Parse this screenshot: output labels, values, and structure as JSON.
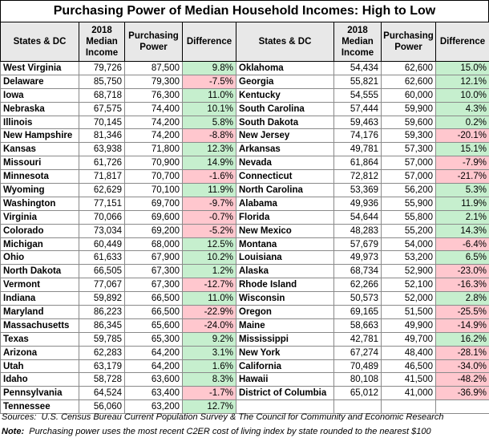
{
  "title": "Purchasing Power of Median Household Incomes: High to Low",
  "headers": {
    "state": "States & DC",
    "income_l1": "2018",
    "income_l2": "Median",
    "income_l3": "Income",
    "pp_l1": "Purchasing",
    "pp_l2": "Power",
    "diff": "Difference"
  },
  "left": [
    {
      "state": "West Virginia",
      "income": "79,726",
      "power": "87,500",
      "diff": "9.8%",
      "sign": "pos"
    },
    {
      "state": "Delaware",
      "income": "85,750",
      "power": "79,300",
      "diff": "-7.5%",
      "sign": "neg"
    },
    {
      "state": "Iowa",
      "income": "68,718",
      "power": "76,300",
      "diff": "11.0%",
      "sign": "pos"
    },
    {
      "state": "Nebraska",
      "income": "67,575",
      "power": "74,400",
      "diff": "10.1%",
      "sign": "pos"
    },
    {
      "state": "Illinois",
      "income": "70,145",
      "power": "74,200",
      "diff": "5.8%",
      "sign": "pos"
    },
    {
      "state": "New Hampshire",
      "income": "81,346",
      "power": "74,200",
      "diff": "-8.8%",
      "sign": "neg"
    },
    {
      "state": "Kansas",
      "income": "63,938",
      "power": "71,800",
      "diff": "12.3%",
      "sign": "pos"
    },
    {
      "state": "Missouri",
      "income": "61,726",
      "power": "70,900",
      "diff": "14.9%",
      "sign": "pos"
    },
    {
      "state": "Minnesota",
      "income": "71,817",
      "power": "70,700",
      "diff": "-1.6%",
      "sign": "neg"
    },
    {
      "state": "Wyoming",
      "income": "62,629",
      "power": "70,100",
      "diff": "11.9%",
      "sign": "pos"
    },
    {
      "state": "Washington",
      "income": "77,151",
      "power": "69,700",
      "diff": "-9.7%",
      "sign": "neg"
    },
    {
      "state": "Virginia",
      "income": "70,066",
      "power": "69,600",
      "diff": "-0.7%",
      "sign": "neg"
    },
    {
      "state": "Colorado",
      "income": "73,034",
      "power": "69,200",
      "diff": "-5.2%",
      "sign": "neg"
    },
    {
      "state": "Michigan",
      "income": "60,449",
      "power": "68,000",
      "diff": "12.5%",
      "sign": "pos"
    },
    {
      "state": "Ohio",
      "income": "61,633",
      "power": "67,900",
      "diff": "10.2%",
      "sign": "pos"
    },
    {
      "state": "North Dakota",
      "income": "66,505",
      "power": "67,300",
      "diff": "1.2%",
      "sign": "pos"
    },
    {
      "state": "Vermont",
      "income": "77,067",
      "power": "67,300",
      "diff": "-12.7%",
      "sign": "neg"
    },
    {
      "state": "Indiana",
      "income": "59,892",
      "power": "66,500",
      "diff": "11.0%",
      "sign": "pos"
    },
    {
      "state": "Maryland",
      "income": "86,223",
      "power": "66,500",
      "diff": "-22.9%",
      "sign": "neg"
    },
    {
      "state": "Massachusetts",
      "income": "86,345",
      "power": "65,600",
      "diff": "-24.0%",
      "sign": "neg"
    },
    {
      "state": "Texas",
      "income": "59,785",
      "power": "65,300",
      "diff": "9.2%",
      "sign": "pos"
    },
    {
      "state": "Arizona",
      "income": "62,283",
      "power": "64,200",
      "diff": "3.1%",
      "sign": "pos"
    },
    {
      "state": "Utah",
      "income": "63,179",
      "power": "64,200",
      "diff": "1.6%",
      "sign": "pos"
    },
    {
      "state": "Idaho",
      "income": "58,728",
      "power": "63,600",
      "diff": "8.3%",
      "sign": "pos"
    },
    {
      "state": "Pennsylvania",
      "income": "64,524",
      "power": "63,400",
      "diff": "-1.7%",
      "sign": "neg"
    },
    {
      "state": "Tennessee",
      "income": "56,060",
      "power": "63,200",
      "diff": "12.7%",
      "sign": "pos"
    }
  ],
  "right": [
    {
      "state": "Oklahoma",
      "income": "54,434",
      "power": "62,600",
      "diff": "15.0%",
      "sign": "pos"
    },
    {
      "state": "Georgia",
      "income": "55,821",
      "power": "62,600",
      "diff": "12.1%",
      "sign": "pos"
    },
    {
      "state": "Kentucky",
      "income": "54,555",
      "power": "60,000",
      "diff": "10.0%",
      "sign": "pos"
    },
    {
      "state": "South Carolina",
      "income": "57,444",
      "power": "59,900",
      "diff": "4.3%",
      "sign": "pos"
    },
    {
      "state": "South Dakota",
      "income": "59,463",
      "power": "59,600",
      "diff": "0.2%",
      "sign": "pos"
    },
    {
      "state": "New Jersey",
      "income": "74,176",
      "power": "59,300",
      "diff": "-20.1%",
      "sign": "neg"
    },
    {
      "state": "Arkansas",
      "income": "49,781",
      "power": "57,300",
      "diff": "15.1%",
      "sign": "pos"
    },
    {
      "state": "Nevada",
      "income": "61,864",
      "power": "57,000",
      "diff": "-7.9%",
      "sign": "neg"
    },
    {
      "state": "Connecticut",
      "income": "72,812",
      "power": "57,000",
      "diff": "-21.7%",
      "sign": "neg"
    },
    {
      "state": "North Carolina",
      "income": "53,369",
      "power": "56,200",
      "diff": "5.3%",
      "sign": "pos"
    },
    {
      "state": "Alabama",
      "income": "49,936",
      "power": "55,900",
      "diff": "11.9%",
      "sign": "pos"
    },
    {
      "state": "Florida",
      "income": "54,644",
      "power": "55,800",
      "diff": "2.1%",
      "sign": "pos"
    },
    {
      "state": "New Mexico",
      "income": "48,283",
      "power": "55,200",
      "diff": "14.3%",
      "sign": "pos"
    },
    {
      "state": "Montana",
      "income": "57,679",
      "power": "54,000",
      "diff": "-6.4%",
      "sign": "neg"
    },
    {
      "state": "Louisiana",
      "income": "49,973",
      "power": "53,200",
      "diff": "6.5%",
      "sign": "pos"
    },
    {
      "state": "Alaska",
      "income": "68,734",
      "power": "52,900",
      "diff": "-23.0%",
      "sign": "neg"
    },
    {
      "state": "Rhode Island",
      "income": "62,266",
      "power": "52,100",
      "diff": "-16.3%",
      "sign": "neg"
    },
    {
      "state": "Wisconsin",
      "income": "50,573",
      "power": "52,000",
      "diff": "2.8%",
      "sign": "pos"
    },
    {
      "state": "Oregon",
      "income": "69,165",
      "power": "51,500",
      "diff": "-25.5%",
      "sign": "neg"
    },
    {
      "state": "Maine",
      "income": "58,663",
      "power": "49,900",
      "diff": "-14.9%",
      "sign": "neg"
    },
    {
      "state": "Mississippi",
      "income": "42,781",
      "power": "49,700",
      "diff": "16.2%",
      "sign": "pos"
    },
    {
      "state": "New York",
      "income": "67,274",
      "power": "48,400",
      "diff": "-28.1%",
      "sign": "neg"
    },
    {
      "state": "California",
      "income": "70,489",
      "power": "46,500",
      "diff": "-34.0%",
      "sign": "neg"
    },
    {
      "state": "Hawaii",
      "income": "80,108",
      "power": "41,500",
      "diff": "-48.2%",
      "sign": "neg"
    },
    {
      "state": "District of Columbia",
      "income": "65,012",
      "power": "41,000",
      "diff": "-36.9%",
      "sign": "neg"
    }
  ],
  "footer": {
    "sources_label": "Sources:",
    "sources_text": "U.S. Census Bureau Current Population Survey & The Council for Community and Economic Research",
    "note_label": "Note:",
    "note_text": "Purchasing power uses the most recent C2ER cost of living index by state rounded to the nearest $100"
  }
}
